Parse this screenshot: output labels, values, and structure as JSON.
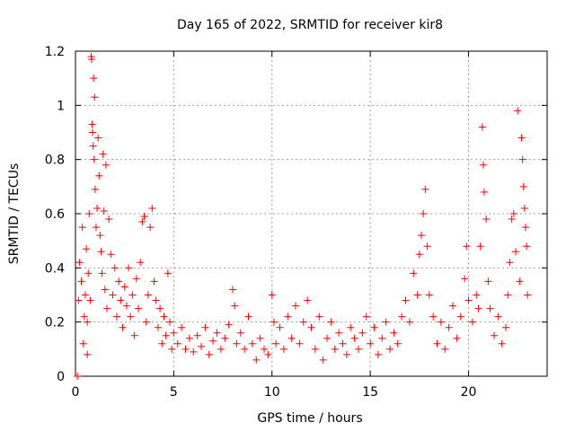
{
  "chart_data": {
    "type": "scatter",
    "title": "Day 165 of 2022, SRMTID for receiver kir8",
    "xlabel": "GPS time / hours",
    "ylabel": "SRMTID / TECUs",
    "xlim": [
      0,
      24
    ],
    "ylim": [
      0,
      1.2
    ],
    "xticks": [
      0,
      5,
      10,
      15,
      20
    ],
    "xtick_labels": [
      "0",
      "5",
      "10",
      "15",
      "20"
    ],
    "yticks": [
      0,
      0.2,
      0.4,
      0.6,
      0.8,
      1,
      1.2
    ],
    "ytick_labels": [
      "0",
      "0.2",
      "0.4",
      "0.6",
      "0.8",
      "1",
      "1.2"
    ],
    "grid": true,
    "legend": "none",
    "marker": "+",
    "color": "#ff0000",
    "series": [
      {
        "name": "SRMTID",
        "points": [
          [
            0.1,
            0.0
          ],
          [
            0.15,
            0.28
          ],
          [
            0.2,
            0.42
          ],
          [
            0.3,
            0.35
          ],
          [
            0.35,
            0.55
          ],
          [
            0.4,
            0.12
          ],
          [
            0.45,
            0.22
          ],
          [
            0.5,
            0.3
          ],
          [
            0.55,
            0.47
          ],
          [
            0.6,
            0.08
          ],
          [
            0.6,
            0.2
          ],
          [
            0.65,
            0.38
          ],
          [
            0.7,
            0.6
          ],
          [
            0.75,
            0.28
          ],
          [
            0.8,
            1.18
          ],
          [
            0.82,
            1.17
          ],
          [
            0.85,
            0.93
          ],
          [
            0.87,
            0.9
          ],
          [
            0.9,
            0.85
          ],
          [
            0.92,
            1.1
          ],
          [
            0.95,
            0.8
          ],
          [
            0.97,
            1.03
          ],
          [
            1.0,
            0.69
          ],
          [
            1.05,
            0.55
          ],
          [
            1.1,
            0.62
          ],
          [
            1.15,
            0.88
          ],
          [
            1.2,
            0.74
          ],
          [
            1.25,
            0.52
          ],
          [
            1.3,
            0.46
          ],
          [
            1.35,
            0.38
          ],
          [
            1.4,
            0.82
          ],
          [
            1.45,
            0.61
          ],
          [
            1.5,
            0.32
          ],
          [
            1.55,
            0.78
          ],
          [
            1.6,
            0.25
          ],
          [
            1.7,
            0.58
          ],
          [
            1.8,
            0.45
          ],
          [
            1.9,
            0.3
          ],
          [
            2.0,
            0.4
          ],
          [
            2.1,
            0.22
          ],
          [
            2.2,
            0.35
          ],
          [
            2.3,
            0.28
          ],
          [
            2.4,
            0.18
          ],
          [
            2.5,
            0.33
          ],
          [
            2.6,
            0.26
          ],
          [
            2.7,
            0.4
          ],
          [
            2.8,
            0.22
          ],
          [
            2.9,
            0.3
          ],
          [
            3.0,
            0.15
          ],
          [
            3.1,
            0.36
          ],
          [
            3.2,
            0.25
          ],
          [
            3.3,
            0.42
          ],
          [
            3.4,
            0.57
          ],
          [
            3.5,
            0.59
          ],
          [
            3.6,
            0.2
          ],
          [
            3.7,
            0.3
          ],
          [
            3.8,
            0.55
          ],
          [
            3.9,
            0.62
          ],
          [
            4.0,
            0.35
          ],
          [
            4.1,
            0.28
          ],
          [
            4.2,
            0.18
          ],
          [
            4.3,
            0.25
          ],
          [
            4.4,
            0.12
          ],
          [
            4.5,
            0.22
          ],
          [
            4.6,
            0.15
          ],
          [
            4.7,
            0.38
          ],
          [
            4.8,
            0.2
          ],
          [
            4.9,
            0.1
          ],
          [
            5.0,
            0.16
          ],
          [
            5.2,
            0.12
          ],
          [
            5.4,
            0.18
          ],
          [
            5.6,
            0.1
          ],
          [
            5.8,
            0.14
          ],
          [
            6.0,
            0.09
          ],
          [
            6.2,
            0.15
          ],
          [
            6.4,
            0.11
          ],
          [
            6.6,
            0.18
          ],
          [
            6.8,
            0.08
          ],
          [
            7.0,
            0.13
          ],
          [
            7.2,
            0.16
          ],
          [
            7.4,
            0.1
          ],
          [
            7.6,
            0.14
          ],
          [
            7.8,
            0.19
          ],
          [
            8.0,
            0.32
          ],
          [
            8.1,
            0.26
          ],
          [
            8.2,
            0.12
          ],
          [
            8.4,
            0.16
          ],
          [
            8.6,
            0.1
          ],
          [
            8.8,
            0.22
          ],
          [
            9.0,
            0.12
          ],
          [
            9.2,
            0.06
          ],
          [
            9.4,
            0.14
          ],
          [
            9.6,
            0.1
          ],
          [
            9.8,
            0.08
          ],
          [
            10.0,
            0.3
          ],
          [
            10.1,
            0.2
          ],
          [
            10.2,
            0.12
          ],
          [
            10.4,
            0.18
          ],
          [
            10.6,
            0.1
          ],
          [
            10.8,
            0.22
          ],
          [
            11.0,
            0.14
          ],
          [
            11.2,
            0.26
          ],
          [
            11.4,
            0.12
          ],
          [
            11.6,
            0.2
          ],
          [
            11.8,
            0.28
          ],
          [
            12.0,
            0.18
          ],
          [
            12.2,
            0.1
          ],
          [
            12.4,
            0.22
          ],
          [
            12.6,
            0.06
          ],
          [
            12.8,
            0.14
          ],
          [
            13.0,
            0.2
          ],
          [
            13.2,
            0.1
          ],
          [
            13.4,
            0.16
          ],
          [
            13.6,
            0.12
          ],
          [
            13.8,
            0.08
          ],
          [
            14.0,
            0.18
          ],
          [
            14.2,
            0.14
          ],
          [
            14.4,
            0.1
          ],
          [
            14.6,
            0.16
          ],
          [
            14.8,
            0.22
          ],
          [
            15.0,
            0.12
          ],
          [
            15.2,
            0.18
          ],
          [
            15.4,
            0.08
          ],
          [
            15.6,
            0.14
          ],
          [
            15.8,
            0.2
          ],
          [
            16.0,
            0.1
          ],
          [
            16.2,
            0.16
          ],
          [
            16.4,
            0.12
          ],
          [
            16.6,
            0.22
          ],
          [
            16.8,
            0.28
          ],
          [
            17.0,
            0.2
          ],
          [
            17.2,
            0.38
          ],
          [
            17.4,
            0.3
          ],
          [
            17.5,
            0.45
          ],
          [
            17.6,
            0.52
          ],
          [
            17.7,
            0.6
          ],
          [
            17.8,
            0.69
          ],
          [
            17.9,
            0.48
          ],
          [
            18.0,
            0.3
          ],
          [
            18.2,
            0.22
          ],
          [
            18.4,
            0.12
          ],
          [
            18.6,
            0.2
          ],
          [
            18.8,
            0.1
          ],
          [
            19.0,
            0.18
          ],
          [
            19.2,
            0.26
          ],
          [
            19.4,
            0.14
          ],
          [
            19.6,
            0.22
          ],
          [
            19.8,
            0.36
          ],
          [
            19.9,
            0.48
          ],
          [
            20.0,
            0.28
          ],
          [
            20.2,
            0.2
          ],
          [
            20.4,
            0.3
          ],
          [
            20.5,
            0.25
          ],
          [
            20.6,
            0.48
          ],
          [
            20.7,
            0.92
          ],
          [
            20.75,
            0.78
          ],
          [
            20.8,
            0.68
          ],
          [
            20.9,
            0.58
          ],
          [
            21.0,
            0.35
          ],
          [
            21.1,
            0.25
          ],
          [
            21.3,
            0.15
          ],
          [
            21.5,
            0.22
          ],
          [
            21.7,
            0.12
          ],
          [
            21.9,
            0.18
          ],
          [
            22.0,
            0.3
          ],
          [
            22.1,
            0.42
          ],
          [
            22.2,
            0.58
          ],
          [
            22.3,
            0.6
          ],
          [
            22.4,
            0.46
          ],
          [
            22.5,
            0.98
          ],
          [
            22.6,
            0.35
          ],
          [
            22.7,
            0.88
          ],
          [
            22.75,
            0.8
          ],
          [
            22.8,
            0.7
          ],
          [
            22.85,
            0.62
          ],
          [
            22.9,
            0.55
          ],
          [
            22.95,
            0.48
          ],
          [
            23.0,
            0.3
          ]
        ]
      }
    ]
  }
}
